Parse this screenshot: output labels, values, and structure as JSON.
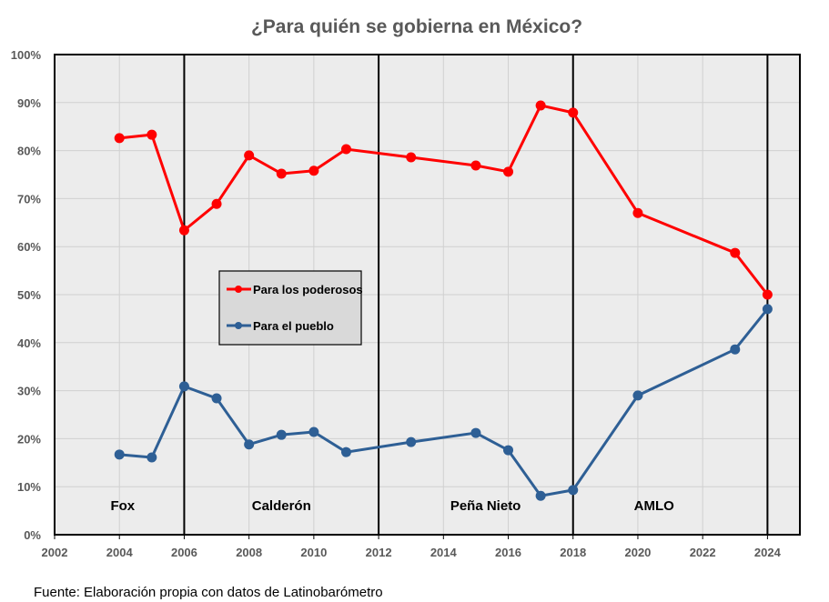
{
  "chart_data": {
    "type": "line",
    "title": "¿Para quién se gobierna en México?",
    "xlabel": "",
    "ylabel": "",
    "xlim": [
      2002,
      2025
    ],
    "ylim": [
      0,
      100
    ],
    "x_ticks": [
      2002,
      2004,
      2006,
      2008,
      2010,
      2012,
      2014,
      2016,
      2018,
      2020,
      2022,
      2024
    ],
    "y_ticks": [
      "0%",
      "10%",
      "20%",
      "30%",
      "40%",
      "50%",
      "60%",
      "70%",
      "80%",
      "90%",
      "100%"
    ],
    "grid": true,
    "legend_position": "center-left",
    "series": [
      {
        "name": "Para los poderosos",
        "color": "#ff0000",
        "x": [
          2004,
          2005,
          2006,
          2007,
          2008,
          2009,
          2010,
          2011,
          2013,
          2015,
          2016,
          2017,
          2018,
          2020,
          2023,
          2024
        ],
        "values": [
          82.6,
          83.3,
          63.4,
          68.9,
          79.0,
          75.2,
          75.8,
          80.3,
          78.6,
          76.9,
          75.6,
          89.4,
          87.9,
          67.0,
          58.7,
          50.0
        ]
      },
      {
        "name": "Para el pueblo",
        "color": "#2e5f95",
        "x": [
          2004,
          2005,
          2006,
          2007,
          2008,
          2009,
          2010,
          2011,
          2013,
          2015,
          2016,
          2017,
          2018,
          2020,
          2023,
          2024
        ],
        "values": [
          16.7,
          16.1,
          30.9,
          28.4,
          18.8,
          20.8,
          21.4,
          17.2,
          19.3,
          21.2,
          17.6,
          8.1,
          9.3,
          29.0,
          38.6,
          47.0
        ]
      }
    ],
    "period_dividers": [
      2006,
      2012,
      2018,
      2024
    ],
    "annotations": [
      {
        "text": "Fox",
        "x": 2004.1
      },
      {
        "text": "Calderón",
        "x": 2009
      },
      {
        "text": "Peña Nieto",
        "x": 2015.3
      },
      {
        "text": "AMLO",
        "x": 2020.5
      }
    ],
    "source": "Fuente: Elaboración propia con datos de Latinobarómetro"
  }
}
